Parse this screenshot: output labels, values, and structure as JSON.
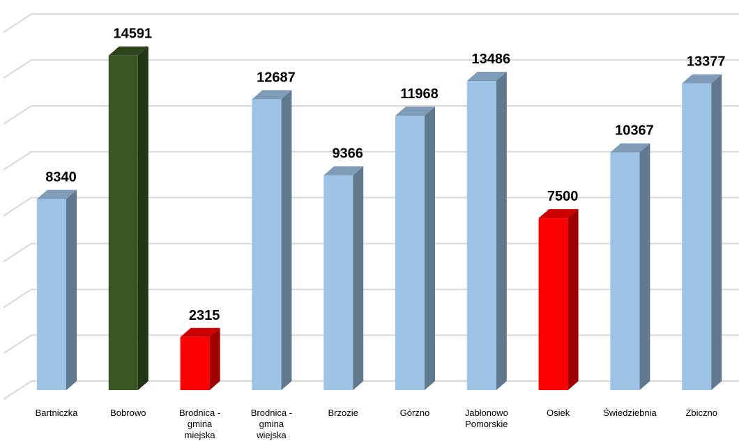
{
  "chart_data": {
    "type": "bar",
    "categories": [
      "Bartniczka",
      "Bobrowo",
      "Brodnica -\ngmina\nmiejska",
      "Brodnica -\ngmina\nwiejska",
      "Brzozie",
      "Górzno",
      "Jabłonowo\nPomorskie",
      "Osiek",
      "Świedziebnia",
      "Zbiczno"
    ],
    "values": [
      8340,
      14591,
      2315,
      12687,
      9366,
      11968,
      13486,
      7500,
      10367,
      13377
    ],
    "bar_colors": [
      "#9dc3e6",
      "#375623",
      "#ff0000",
      "#9dc3e6",
      "#9dc3e6",
      "#9dc3e6",
      "#9dc3e6",
      "#ff0000",
      "#9dc3e6",
      "#9dc3e6"
    ],
    "ylim": [
      0,
      16000
    ],
    "grid": true,
    "legend": "none",
    "style": "3d-column"
  }
}
